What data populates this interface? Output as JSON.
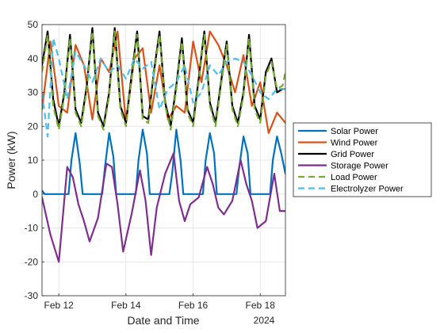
{
  "chart_data": {
    "type": "line",
    "xlabel": "Date and Time",
    "ylabel": "Power (kW)",
    "xlim": [
      "2024-02-11T12:00",
      "2024-02-18T18:00"
    ],
    "ylim": [
      -30,
      50
    ],
    "x_ticks": [
      "2024-02-12",
      "2024-02-14",
      "2024-02-16",
      "2024-02-18"
    ],
    "x_tick_labels": [
      "Feb 12",
      "Feb 14",
      "Feb 16",
      "Feb 18"
    ],
    "x_secondary_label": "2024",
    "y_ticks": [
      -30,
      -20,
      -10,
      0,
      10,
      20,
      30,
      40,
      50
    ],
    "grid": true,
    "legend_position": "right",
    "series": [
      {
        "name": "Solar Power",
        "color": "#0072BD",
        "style": "solid",
        "x": [
          "2024-02-11T12:00",
          "2024-02-11T14:00",
          "2024-02-11T16:00",
          "2024-02-12T07:00",
          "2024-02-12T09:00",
          "2024-02-12T12:00",
          "2024-02-12T15:00",
          "2024-02-12T17:00",
          "2024-02-13T07:00",
          "2024-02-13T09:00",
          "2024-02-13T12:00",
          "2024-02-13T15:00",
          "2024-02-13T17:00",
          "2024-02-14T07:00",
          "2024-02-14T09:00",
          "2024-02-14T12:00",
          "2024-02-14T15:00",
          "2024-02-14T17:00",
          "2024-02-15T07:00",
          "2024-02-15T09:00",
          "2024-02-15T12:00",
          "2024-02-15T15:00",
          "2024-02-15T17:00",
          "2024-02-16T07:00",
          "2024-02-16T09:00",
          "2024-02-16T12:00",
          "2024-02-16T15:00",
          "2024-02-16T17:00",
          "2024-02-17T07:00",
          "2024-02-17T09:00",
          "2024-02-17T12:00",
          "2024-02-17T15:00",
          "2024-02-17T17:00",
          "2024-02-18T07:00",
          "2024-02-18T09:00",
          "2024-02-18T12:00",
          "2024-02-18T15:00",
          "2024-02-18T18:00"
        ],
        "y": [
          1,
          0,
          0,
          0,
          10,
          18,
          9,
          0,
          0,
          8,
          18,
          11,
          0,
          0,
          10,
          19,
          12,
          0,
          0,
          6,
          19,
          10,
          0,
          0,
          10,
          18,
          12,
          0,
          0,
          8,
          17,
          12,
          0,
          0,
          10,
          17,
          12,
          6
        ]
      },
      {
        "name": "Wind Power",
        "color": "#D95319",
        "style": "solid",
        "x": [
          "2024-02-11T12:00",
          "2024-02-11T18:00",
          "2024-02-12T00:00",
          "2024-02-12T06:00",
          "2024-02-12T12:00",
          "2024-02-12T18:00",
          "2024-02-13T00:00",
          "2024-02-13T06:00",
          "2024-02-13T12:00",
          "2024-02-13T18:00",
          "2024-02-14T00:00",
          "2024-02-14T06:00",
          "2024-02-14T12:00",
          "2024-02-14T18:00",
          "2024-02-15T00:00",
          "2024-02-15T06:00",
          "2024-02-15T12:00",
          "2024-02-15T18:00",
          "2024-02-16T00:00",
          "2024-02-16T06:00",
          "2024-02-16T12:00",
          "2024-02-16T18:00",
          "2024-02-17T00:00",
          "2024-02-17T06:00",
          "2024-02-17T12:00",
          "2024-02-17T18:00",
          "2024-02-18T00:00",
          "2024-02-18T06:00",
          "2024-02-18T12:00",
          "2024-02-18T18:00"
        ],
        "y": [
          25,
          45,
          26,
          24,
          44,
          38,
          22,
          40,
          36,
          48,
          21,
          40,
          43,
          24,
          38,
          22,
          26,
          24,
          45,
          33,
          48,
          44,
          38,
          30,
          41,
          26,
          33,
          18,
          24,
          21
        ]
      },
      {
        "name": "Grid Power",
        "color": "#000000",
        "style": "solid",
        "x": [
          "2024-02-11T12:00",
          "2024-02-11T16:00",
          "2024-02-11T20:00",
          "2024-02-12T00:00",
          "2024-02-12T04:00",
          "2024-02-12T08:00",
          "2024-02-12T12:00",
          "2024-02-12T16:00",
          "2024-02-12T20:00",
          "2024-02-13T00:00",
          "2024-02-13T04:00",
          "2024-02-13T08:00",
          "2024-02-13T12:00",
          "2024-02-13T16:00",
          "2024-02-13T20:00",
          "2024-02-14T00:00",
          "2024-02-14T04:00",
          "2024-02-14T08:00",
          "2024-02-14T12:00",
          "2024-02-14T16:00",
          "2024-02-14T20:00",
          "2024-02-15T00:00",
          "2024-02-15T04:00",
          "2024-02-15T08:00",
          "2024-02-15T12:00",
          "2024-02-15T16:00",
          "2024-02-15T20:00",
          "2024-02-16T00:00",
          "2024-02-16T04:00",
          "2024-02-16T08:00",
          "2024-02-16T12:00",
          "2024-02-16T16:00",
          "2024-02-16T20:00",
          "2024-02-17T00:00",
          "2024-02-17T04:00",
          "2024-02-17T08:00",
          "2024-02-17T12:00",
          "2024-02-17T16:00",
          "2024-02-17T20:00",
          "2024-02-18T00:00",
          "2024-02-18T04:00",
          "2024-02-18T08:00",
          "2024-02-18T12:00",
          "2024-02-18T16:00",
          "2024-02-18T18:00"
        ],
        "y": [
          38,
          48,
          28,
          20,
          30,
          47,
          25,
          21,
          32,
          49,
          24,
          20,
          30,
          49,
          26,
          21,
          35,
          48,
          23,
          22,
          36,
          48,
          27,
          20,
          32,
          46,
          25,
          21,
          34,
          48,
          27,
          21,
          33,
          45,
          26,
          21,
          30,
          47,
          26,
          22,
          36,
          40,
          30,
          31,
          31
        ]
      },
      {
        "name": "Storage Power",
        "color": "#7E2F8E",
        "style": "solid",
        "x": [
          "2024-02-11T12:00",
          "2024-02-11T18:00",
          "2024-02-12T00:00",
          "2024-02-12T06:00",
          "2024-02-12T10:00",
          "2024-02-12T14:00",
          "2024-02-12T18:00",
          "2024-02-12T22:00",
          "2024-02-13T04:00",
          "2024-02-13T10:00",
          "2024-02-13T14:00",
          "2024-02-13T18:00",
          "2024-02-13T22:00",
          "2024-02-14T04:00",
          "2024-02-14T10:00",
          "2024-02-14T14:00",
          "2024-02-14T18:00",
          "2024-02-14T22:00",
          "2024-02-15T04:00",
          "2024-02-15T10:00",
          "2024-02-15T14:00",
          "2024-02-15T18:00",
          "2024-02-15T22:00",
          "2024-02-16T04:00",
          "2024-02-16T10:00",
          "2024-02-16T14:00",
          "2024-02-16T18:00",
          "2024-02-16T22:00",
          "2024-02-17T04:00",
          "2024-02-17T10:00",
          "2024-02-17T14:00",
          "2024-02-17T18:00",
          "2024-02-17T22:00",
          "2024-02-18T04:00",
          "2024-02-18T10:00",
          "2024-02-18T14:00",
          "2024-02-18T18:00"
        ],
        "y": [
          -1,
          -12,
          -20,
          8,
          5,
          -3,
          -8,
          -14,
          -7,
          9,
          8,
          -3,
          -17,
          -6,
          7,
          -2,
          -18,
          -4,
          6,
          12,
          -2,
          -8,
          -3,
          -1,
          8,
          3,
          -4,
          -6,
          -2,
          10,
          3,
          -2,
          -10,
          -8,
          6,
          -5,
          -5
        ]
      },
      {
        "name": "Load Power",
        "color": "#77AC30",
        "style": "dashed",
        "x": [
          "2024-02-11T12:00",
          "2024-02-11T16:00",
          "2024-02-11T20:00",
          "2024-02-12T00:00",
          "2024-02-12T04:00",
          "2024-02-12T08:00",
          "2024-02-12T12:00",
          "2024-02-12T16:00",
          "2024-02-12T20:00",
          "2024-02-13T00:00",
          "2024-02-13T04:00",
          "2024-02-13T08:00",
          "2024-02-13T12:00",
          "2024-02-13T16:00",
          "2024-02-13T20:00",
          "2024-02-14T00:00",
          "2024-02-14T04:00",
          "2024-02-14T08:00",
          "2024-02-14T12:00",
          "2024-02-14T16:00",
          "2024-02-14T20:00",
          "2024-02-15T00:00",
          "2024-02-15T04:00",
          "2024-02-15T08:00",
          "2024-02-15T12:00",
          "2024-02-15T16:00",
          "2024-02-15T20:00",
          "2024-02-16T00:00",
          "2024-02-16T04:00",
          "2024-02-16T08:00",
          "2024-02-16T12:00",
          "2024-02-16T16:00",
          "2024-02-16T20:00",
          "2024-02-17T00:00",
          "2024-02-17T04:00",
          "2024-02-17T08:00",
          "2024-02-17T12:00",
          "2024-02-17T16:00",
          "2024-02-17T20:00",
          "2024-02-18T00:00",
          "2024-02-18T04:00",
          "2024-02-18T08:00",
          "2024-02-18T12:00",
          "2024-02-18T16:00",
          "2024-02-18T18:00"
        ],
        "y": [
          36,
          47,
          26,
          19,
          29,
          46,
          24,
          20,
          31,
          48,
          23,
          19,
          29,
          48,
          25,
          20,
          34,
          47,
          22,
          21,
          35,
          47,
          26,
          19,
          31,
          45,
          24,
          20,
          33,
          47,
          26,
          20,
          32,
          44,
          25,
          20,
          29,
          46,
          25,
          21,
          35,
          39,
          31,
          32,
          36
        ]
      },
      {
        "name": "Electrolyzer Power",
        "color": "#4DBEEE",
        "style": "dashed",
        "x": [
          "2024-02-11T12:00",
          "2024-02-11T16:00",
          "2024-02-11T20:00",
          "2024-02-12T00:00",
          "2024-02-12T06:00",
          "2024-02-12T12:00",
          "2024-02-12T18:00",
          "2024-02-13T00:00",
          "2024-02-13T06:00",
          "2024-02-13T12:00",
          "2024-02-13T18:00",
          "2024-02-14T00:00",
          "2024-02-14T06:00",
          "2024-02-14T12:00",
          "2024-02-14T18:00",
          "2024-02-15T00:00",
          "2024-02-15T06:00",
          "2024-02-15T12:00",
          "2024-02-15T18:00",
          "2024-02-16T00:00",
          "2024-02-16T06:00",
          "2024-02-16T12:00",
          "2024-02-16T18:00",
          "2024-02-17T00:00",
          "2024-02-17T06:00",
          "2024-02-17T12:00",
          "2024-02-17T18:00",
          "2024-02-18T00:00",
          "2024-02-18T06:00",
          "2024-02-18T12:00",
          "2024-02-18T18:00"
        ],
        "y": [
          30,
          17,
          46,
          40,
          28,
          42,
          38,
          33,
          40,
          36,
          38,
          34,
          40,
          37,
          39,
          25,
          31,
          33,
          38,
          27,
          30,
          38,
          35,
          39,
          40,
          39,
          35,
          30,
          28,
          31,
          31
        ]
      }
    ]
  }
}
